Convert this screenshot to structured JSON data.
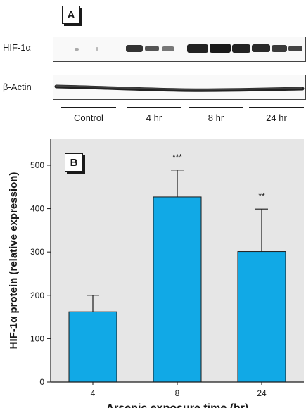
{
  "panel_a": {
    "label": "A",
    "blots": [
      {
        "name": "HIF-1α"
      },
      {
        "name": "β-Actin"
      }
    ],
    "groups": [
      "Control",
      "4 hr",
      "8 hr",
      "24 hr"
    ]
  },
  "panel_b": {
    "label": "B"
  },
  "chart_data": {
    "type": "bar",
    "categories": [
      "4",
      "8",
      "24"
    ],
    "values": [
      162,
      427,
      301
    ],
    "errors": [
      38,
      62,
      98
    ],
    "significance": [
      "",
      "***",
      "**"
    ],
    "xlabel": "Arsenic exposure time (hr)",
    "ylabel": "HIF-1α protein (relative expression)",
    "ylim": [
      0,
      560
    ],
    "yticks": [
      0,
      100,
      200,
      300,
      400,
      500
    ],
    "grid": false,
    "colors": {
      "bar": "#11a9e6",
      "bar_edge": "#1a1a1a",
      "plot_bg": "#e6e6e6"
    }
  }
}
